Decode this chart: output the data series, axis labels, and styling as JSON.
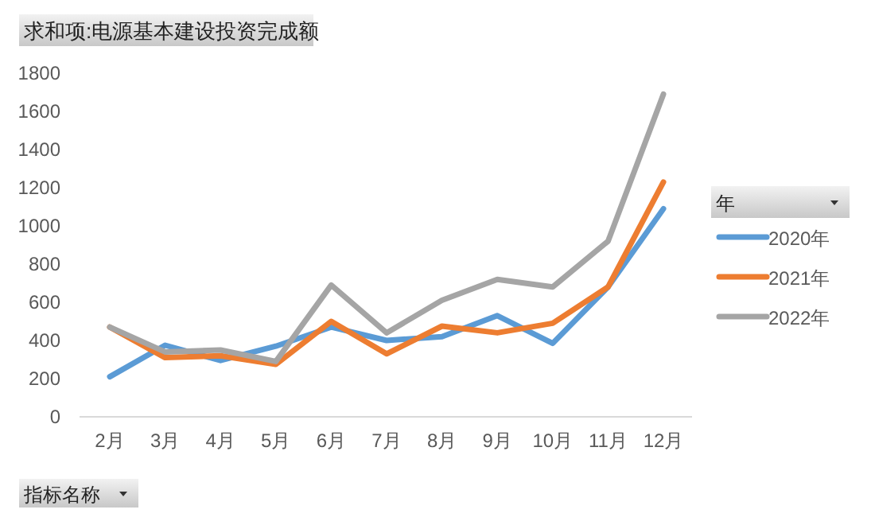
{
  "chart_data": {
    "type": "line",
    "title": "求和项:电源基本建设投资完成额",
    "legend_title": "年",
    "annotations": [
      "指标名称"
    ],
    "categories": [
      "2月",
      "3月",
      "4月",
      "5月",
      "6月",
      "7月",
      "8月",
      "9月",
      "10月",
      "11月",
      "12月"
    ],
    "series": [
      {
        "name": "2020年",
        "color": "#5b9bd5",
        "values": [
          210,
          375,
          295,
          370,
          470,
          400,
          420,
          530,
          385,
          680,
          1090
        ]
      },
      {
        "name": "2021年",
        "color": "#ed7d31",
        "values": [
          470,
          310,
          320,
          275,
          500,
          330,
          475,
          440,
          490,
          680,
          1230
        ]
      },
      {
        "name": "2022年",
        "color": "#a5a5a5",
        "values": [
          470,
          340,
          350,
          290,
          690,
          440,
          610,
          720,
          680,
          920,
          1690
        ]
      }
    ],
    "ylim": [
      0,
      1800
    ],
    "yticks": [
      0,
      200,
      400,
      600,
      800,
      1000,
      1200,
      1400,
      1600,
      1800
    ],
    "grid": false,
    "legend": "right",
    "marker": "none",
    "line_style": "solid"
  }
}
